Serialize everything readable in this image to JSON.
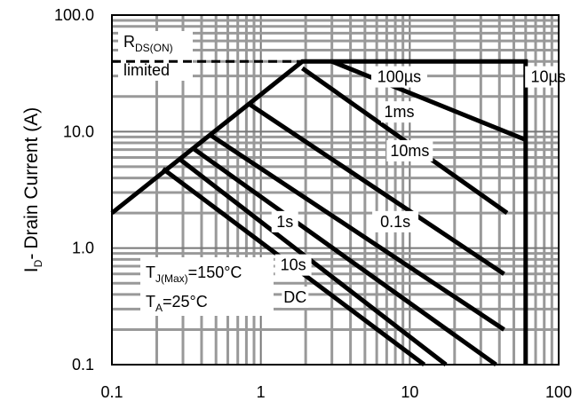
{
  "chart_data": {
    "type": "line",
    "title": "",
    "xlabel": "",
    "ylabel": "Drain Current (A)",
    "ylabel_prefix": "I",
    "ylabel_sub": "D",
    "ylabel_sep": "-",
    "xscale": "log",
    "yscale": "log",
    "xlim": [
      0.1,
      100
    ],
    "ylim": [
      0.1,
      100
    ],
    "grid": true,
    "x_tick_labels": [
      "0.1",
      "1",
      "10",
      "100"
    ],
    "y_tick_labels": [
      "100.0",
      "10.0",
      "1.0",
      "0.1"
    ],
    "rds_on_limit": 40,
    "series": [
      {
        "name": "10µs",
        "points": [
          [
            0.1,
            2.0
          ],
          [
            1.9,
            40
          ],
          [
            60,
            40
          ],
          [
            60,
            0.1
          ]
        ]
      },
      {
        "name": "100µs",
        "points": [
          [
            3.0,
            40
          ],
          [
            60,
            8.5
          ]
        ]
      },
      {
        "name": "1ms",
        "points": [
          [
            1.9,
            35
          ],
          [
            45,
            2.0
          ]
        ]
      },
      {
        "name": "10ms",
        "points": [
          [
            0.85,
            17
          ],
          [
            43,
            0.6
          ]
        ]
      },
      {
        "name": "0.1s",
        "points": [
          [
            0.45,
            9.5
          ],
          [
            43,
            0.2
          ]
        ]
      },
      {
        "name": "1s",
        "points": [
          [
            0.35,
            7.2
          ],
          [
            38,
            0.1
          ]
        ]
      },
      {
        "name": "10s",
        "points": [
          [
            0.28,
            5.9
          ],
          [
            17.5,
            0.1
          ]
        ]
      },
      {
        "name": "DC",
        "points": [
          [
            0.22,
            4.8
          ],
          [
            12.5,
            0.1
          ]
        ]
      }
    ],
    "annotations": {
      "rds_line1_main": "R",
      "rds_line1_sub": "DS(ON)",
      "rds_line2": "limited",
      "tj_main": "T",
      "tj_sub": "J(Max)",
      "tj_value": "=150°C",
      "ta_main": "T",
      "ta_sub": "A",
      "ta_value": "=25°C"
    }
  }
}
